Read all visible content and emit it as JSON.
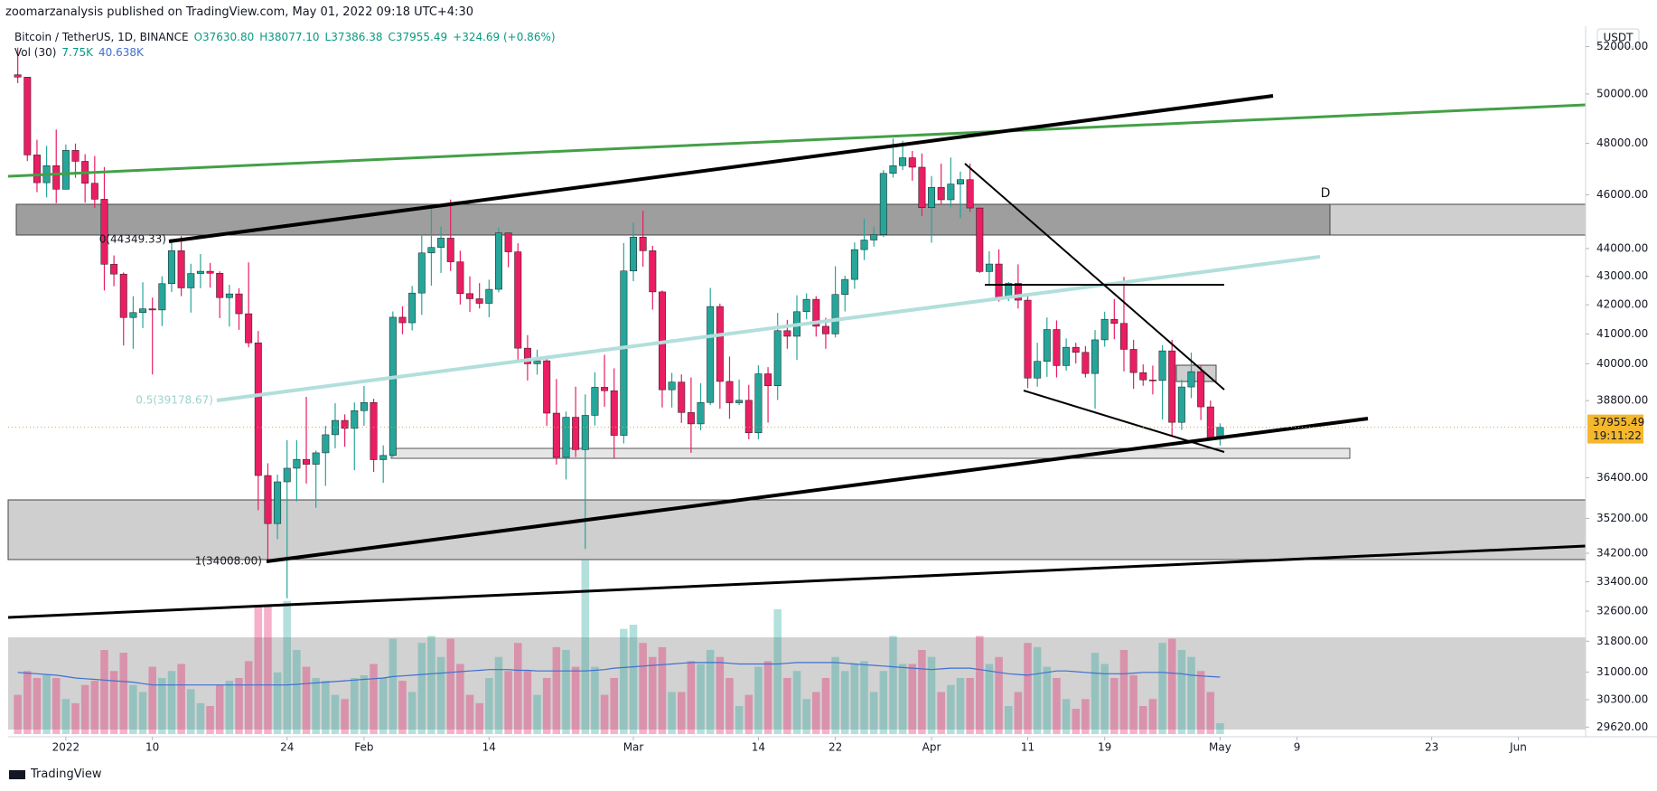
{
  "header": {
    "publisher": "zoomarzanalysis published on TradingView.com, May 01, 2022 09:18 UTC+4:30",
    "symbol": "Bitcoin / TetherUS, 1D, BINANCE",
    "ohlc": [
      "O37630.80",
      "H38077.10",
      "L37386.38",
      "C37955.49",
      "+324.69 (+0.86%)"
    ],
    "volume_name": "Vol (30)",
    "volume_value_label": "7.75K",
    "volume_ma_label": "40.638K",
    "brand": "TradingView"
  },
  "chart_data": {
    "type": "candlestick",
    "currency": "USDT",
    "log_scale": true,
    "up_color": "#26a69a",
    "down_color": "#e91e63",
    "volume_ma_color": "#3f6fd1",
    "annotations": [
      "0(44349.33)",
      "0.5(39178.67)",
      "1(34008.00)",
      "D"
    ],
    "last_price": {
      "value": 37955.49,
      "label": "37955.49"
    },
    "countdown": "19:11:22",
    "ylim": [
      29450,
      52880
    ],
    "yticks": [
      {
        "value": 52000,
        "label": "52000.00"
      },
      {
        "value": 50000,
        "label": "50000.00"
      },
      {
        "value": 48000,
        "label": "48000.00"
      },
      {
        "value": 46000,
        "label": "46000.00"
      },
      {
        "value": 44000,
        "label": "44000.00"
      },
      {
        "value": 43000,
        "label": "43000.00"
      },
      {
        "value": 42000,
        "label": "42000.00"
      },
      {
        "value": 41000,
        "label": "41000.00"
      },
      {
        "value": 40000,
        "label": "40000.00"
      },
      {
        "value": 38800,
        "label": "38800.00"
      },
      {
        "value": 36400,
        "label": "36400.00"
      },
      {
        "value": 35200,
        "label": "35200.00"
      },
      {
        "value": 34200,
        "label": "34200.00"
      },
      {
        "value": 33400,
        "label": "33400.00"
      },
      {
        "value": 32600,
        "label": "32600.00"
      },
      {
        "value": 31800,
        "label": "31800.00"
      },
      {
        "value": 31000,
        "label": "31000.00"
      },
      {
        "value": 30300,
        "label": "30300.00"
      },
      {
        "value": 29620,
        "label": "29620.00"
      }
    ],
    "xlim": [
      "2021-12-26",
      "2022-06-08"
    ],
    "xticks": [
      {
        "value": "2022-01-01",
        "label": "2022"
      },
      {
        "value": "2022-01-10",
        "label": "10"
      },
      {
        "value": "2022-01-24",
        "label": "24"
      },
      {
        "value": "2022-02-01",
        "label": "Feb"
      },
      {
        "value": "2022-02-14",
        "label": "14"
      },
      {
        "value": "2022-03-01",
        "label": "Mar"
      },
      {
        "value": "2022-03-14",
        "label": "14"
      },
      {
        "value": "2022-03-22",
        "label": "22"
      },
      {
        "value": "2022-04-01",
        "label": "Apr"
      },
      {
        "value": "2022-04-11",
        "label": "11"
      },
      {
        "value": "2022-04-19",
        "label": "19"
      },
      {
        "value": "2022-05-01",
        "label": "May"
      },
      {
        "value": "2022-05-09",
        "label": "9"
      },
      {
        "value": "2022-05-23",
        "label": "23"
      },
      {
        "value": "2022-06-01",
        "label": "Jun"
      }
    ],
    "x": [
      "2021-12-27",
      "2021-12-28",
      "2021-12-29",
      "2021-12-30",
      "2021-12-31",
      "2022-01-01",
      "2022-01-02",
      "2022-01-03",
      "2022-01-04",
      "2022-01-05",
      "2022-01-06",
      "2022-01-07",
      "2022-01-08",
      "2022-01-09",
      "2022-01-10",
      "2022-01-11",
      "2022-01-12",
      "2022-01-13",
      "2022-01-14",
      "2022-01-15",
      "2022-01-16",
      "2022-01-17",
      "2022-01-18",
      "2022-01-19",
      "2022-01-20",
      "2022-01-21",
      "2022-01-22",
      "2022-01-23",
      "2022-01-24",
      "2022-01-25",
      "2022-01-26",
      "2022-01-27",
      "2022-01-28",
      "2022-01-29",
      "2022-01-30",
      "2022-01-31",
      "2022-02-01",
      "2022-02-02",
      "2022-02-03",
      "2022-02-04",
      "2022-02-05",
      "2022-02-06",
      "2022-02-07",
      "2022-02-08",
      "2022-02-09",
      "2022-02-10",
      "2022-02-11",
      "2022-02-12",
      "2022-02-13",
      "2022-02-14",
      "2022-02-15",
      "2022-02-16",
      "2022-02-17",
      "2022-02-18",
      "2022-02-19",
      "2022-02-20",
      "2022-02-21",
      "2022-02-22",
      "2022-02-23",
      "2022-02-24",
      "2022-02-25",
      "2022-02-26",
      "2022-02-27",
      "2022-02-28",
      "2022-03-01",
      "2022-03-02",
      "2022-03-03",
      "2022-03-04",
      "2022-03-05",
      "2022-03-06",
      "2022-03-07",
      "2022-03-08",
      "2022-03-09",
      "2022-03-10",
      "2022-03-11",
      "2022-03-12",
      "2022-03-13",
      "2022-03-14",
      "2022-03-15",
      "2022-03-16",
      "2022-03-17",
      "2022-03-18",
      "2022-03-19",
      "2022-03-20",
      "2022-03-21",
      "2022-03-22",
      "2022-03-23",
      "2022-03-24",
      "2022-03-25",
      "2022-03-26",
      "2022-03-27",
      "2022-03-28",
      "2022-03-29",
      "2022-03-30",
      "2022-03-31",
      "2022-04-01",
      "2022-04-02",
      "2022-04-03",
      "2022-04-04",
      "2022-04-05",
      "2022-04-06",
      "2022-04-07",
      "2022-04-08",
      "2022-04-09",
      "2022-04-10",
      "2022-04-11",
      "2022-04-12",
      "2022-04-13",
      "2022-04-14",
      "2022-04-15",
      "2022-04-16",
      "2022-04-17",
      "2022-04-18",
      "2022-04-19",
      "2022-04-20",
      "2022-04-21",
      "2022-04-22",
      "2022-04-23",
      "2022-04-24",
      "2022-04-25",
      "2022-04-26",
      "2022-04-27",
      "2022-04-28",
      "2022-04-29",
      "2022-04-30",
      "2022-05-01"
    ],
    "open": [
      50800,
      50700,
      47540,
      46460,
      47120,
      46210,
      47720,
      47290,
      46440,
      45830,
      43430,
      43080,
      41560,
      41730,
      41860,
      41820,
      42740,
      43920,
      42590,
      43100,
      43180,
      43110,
      42250,
      42380,
      41690,
      40700,
      36470,
      35050,
      36280,
      36690,
      36960,
      36810,
      37160,
      37720,
      38170,
      37920,
      38480,
      38740,
      36950,
      37080,
      41570,
      41380,
      42410,
      43840,
      44040,
      44380,
      43520,
      42390,
      42210,
      42050,
      42540,
      44570,
      43880,
      40520,
      40000,
      40100,
      38400,
      37020,
      38270,
      37260,
      38330,
      39230,
      39120,
      37700,
      43190,
      44420,
      43920,
      42450,
      39150,
      39400,
      38420,
      38060,
      38740,
      41940,
      39420,
      38730,
      38810,
      37780,
      39670,
      39280,
      41110,
      40920,
      41760,
      42190,
      41260,
      41000,
      42360,
      42890,
      43960,
      44310,
      44510,
      46820,
      47120,
      47430,
      47060,
      45510,
      46280,
      45810,
      46410,
      46580,
      45500,
      43170,
      43440,
      42250,
      42750,
      42160,
      39530,
      40080,
      41150,
      39940,
      40550,
      40380,
      39680,
      40800,
      41500,
      41360,
      40480,
      39710,
      39470,
      39450,
      40430,
      38110,
      39240,
      39740,
      38600,
      37630.8
    ],
    "high": [
      51950,
      50700,
      48140,
      47900,
      48550,
      47950,
      47990,
      47570,
      47500,
      47070,
      43750,
      43140,
      42300,
      42790,
      42250,
      43000,
      44350,
      44460,
      43450,
      43800,
      43480,
      43180,
      42700,
      42580,
      43500,
      41100,
      36840,
      36500,
      37550,
      37550,
      38920,
      37230,
      38000,
      38720,
      38360,
      38740,
      39270,
      38860,
      37390,
      41770,
      41950,
      42660,
      44500,
      45490,
      44800,
      45820,
      43920,
      43000,
      42760,
      42880,
      44770,
      44580,
      44190,
      40960,
      40470,
      40150,
      39500,
      38450,
      39250,
      39000,
      39720,
      40300,
      39850,
      44200,
      44950,
      45400,
      44100,
      42500,
      39700,
      39650,
      39550,
      39360,
      42590,
      42040,
      40240,
      39480,
      39310,
      39950,
      39890,
      41720,
      41480,
      42330,
      42400,
      42300,
      41550,
      43360,
      43020,
      44220,
      45090,
      44800,
      46950,
      48190,
      48100,
      47700,
      47600,
      46720,
      47200,
      47440,
      46890,
      47200,
      45500,
      43900,
      43970,
      42800,
      43430,
      42410,
      40700,
      41560,
      41460,
      40850,
      40700,
      40590,
      41130,
      41760,
      42200,
      42980,
      40800,
      39980,
      39940,
      40620,
      40800,
      39470,
      40370,
      39930,
      38800,
      38077.1
    ],
    "low": [
      50450,
      47300,
      46100,
      45900,
      45680,
      46200,
      46650,
      45700,
      45500,
      42500,
      42650,
      40610,
      40500,
      41200,
      39650,
      41270,
      42450,
      42300,
      41730,
      42580,
      42600,
      41540,
      41250,
      41140,
      40550,
      35440,
      34010,
      34600,
      32950,
      35700,
      36230,
      35510,
      36160,
      37300,
      37350,
      36630,
      38000,
      36580,
      36250,
      37030,
      40990,
      41120,
      41650,
      42670,
      43120,
      43190,
      42010,
      41750,
      41870,
      41570,
      42430,
      43320,
      40070,
      39450,
      39640,
      38000,
      36800,
      36350,
      37030,
      34320,
      38010,
      38600,
      37000,
      37450,
      42830,
      43340,
      41830,
      38580,
      38580,
      38090,
      37160,
      37860,
      38660,
      38540,
      38220,
      38660,
      37580,
      37580,
      38100,
      38820,
      40500,
      40130,
      41500,
      40910,
      40500,
      40880,
      41770,
      42560,
      43580,
      44070,
      44420,
      46660,
      46950,
      46540,
      45200,
      44210,
      45620,
      45530,
      45120,
      45350,
      43120,
      42730,
      42110,
      42130,
      41870,
      39200,
      39250,
      39570,
      39550,
      39770,
      40010,
      39550,
      38540,
      40570,
      40820,
      39750,
      39180,
      39280,
      39000,
      38200,
      37700,
      37870,
      38880,
      38180,
      37580,
      37386.38
    ],
    "close": [
      50700,
      47540,
      46460,
      47120,
      46210,
      47720,
      47290,
      46440,
      45830,
      43430,
      43080,
      41560,
      41730,
      41860,
      41820,
      42740,
      43920,
      42590,
      43100,
      43180,
      43110,
      42250,
      42380,
      41690,
      40700,
      36470,
      35050,
      36280,
      36690,
      36960,
      36810,
      37160,
      37720,
      38170,
      37920,
      38480,
      38740,
      36950,
      37080,
      41570,
      41380,
      42410,
      43840,
      44040,
      44380,
      43520,
      42390,
      42210,
      42050,
      42540,
      44570,
      43880,
      40520,
      40000,
      40100,
      38400,
      37020,
      38270,
      37260,
      38330,
      39230,
      39120,
      37700,
      43190,
      44420,
      43920,
      42450,
      39150,
      39400,
      38420,
      38060,
      38740,
      41940,
      39420,
      38730,
      38810,
      37780,
      39670,
      39280,
      41110,
      40920,
      41760,
      42190,
      41260,
      41000,
      42360,
      42890,
      43960,
      44310,
      44510,
      46820,
      47120,
      47430,
      47060,
      45510,
      46280,
      45810,
      46410,
      46580,
      45500,
      43170,
      43440,
      42250,
      42750,
      42160,
      39530,
      40080,
      41150,
      39940,
      40550,
      40380,
      39680,
      40800,
      41500,
      41360,
      40480,
      39710,
      39470,
      39450,
      40430,
      38110,
      39240,
      39740,
      38600,
      37630.8,
      37955.49
    ],
    "volume_ylim": [
      0,
      505000
    ],
    "volume": [
      28000,
      45000,
      40000,
      42000,
      40000,
      25000,
      22000,
      35000,
      38000,
      60000,
      45000,
      58000,
      35000,
      30000,
      48000,
      40000,
      45000,
      50000,
      32000,
      22000,
      20000,
      35000,
      38000,
      40000,
      52000,
      92000,
      92000,
      44000,
      95000,
      60000,
      48000,
      40000,
      38000,
      28000,
      25000,
      40000,
      42000,
      50000,
      40000,
      68000,
      38000,
      30000,
      65000,
      70000,
      55000,
      68000,
      50000,
      28000,
      22000,
      40000,
      55000,
      45000,
      65000,
      45000,
      28000,
      40000,
      62000,
      60000,
      48000,
      124000,
      48000,
      28000,
      40000,
      75000,
      78000,
      65000,
      55000,
      62000,
      30000,
      30000,
      52000,
      50000,
      60000,
      55000,
      40000,
      20000,
      28000,
      48000,
      52000,
      89000,
      40000,
      45000,
      25000,
      30000,
      40000,
      55000,
      45000,
      50000,
      52000,
      30000,
      45000,
      70000,
      50000,
      50000,
      60000,
      55000,
      30000,
      35000,
      40000,
      40000,
      70000,
      50000,
      55000,
      20000,
      30000,
      65000,
      62000,
      48000,
      40000,
      25000,
      18000,
      25000,
      58000,
      50000,
      40000,
      60000,
      42000,
      20000,
      25000,
      65000,
      68000,
      60000,
      55000,
      45000,
      30000,
      7750
    ],
    "volume_ma": [
      44000,
      43500,
      43000,
      42500,
      42000,
      41000,
      40000,
      39500,
      39000,
      38500,
      38000,
      37500,
      37000,
      36000,
      35000,
      35000,
      35000,
      35000,
      35000,
      35000,
      35000,
      35000,
      35000,
      35000,
      35000,
      35000,
      35000,
      35000,
      35000,
      35500,
      36000,
      36500,
      37000,
      37500,
      38000,
      38500,
      39000,
      39500,
      40000,
      41000,
      41500,
      42000,
      42500,
      43000,
      43500,
      44000,
      44500,
      45000,
      45500,
      46000,
      46000,
      46000,
      45500,
      45500,
      45000,
      45000,
      45000,
      45000,
      45000,
      45000,
      45500,
      46000,
      47000,
      47500,
      48000,
      48500,
      49000,
      49500,
      50000,
      50500,
      51000,
      51000,
      51000,
      51000,
      50500,
      50000,
      50000,
      50000,
      50000,
      50000,
      50500,
      51000,
      51000,
      51000,
      51000,
      51000,
      50500,
      50000,
      49500,
      49000,
      48500,
      48000,
      47500,
      47000,
      46500,
      46000,
      46500,
      47000,
      47000,
      47000,
      46000,
      45000,
      44000,
      43000,
      42500,
      42000,
      43000,
      44000,
      45000,
      45000,
      44500,
      44000,
      43500,
      43000,
      43000,
      43000,
      43500,
      44000,
      44000,
      44000,
      43500,
      43000,
      42000,
      41500,
      41000,
      40638
    ]
  }
}
